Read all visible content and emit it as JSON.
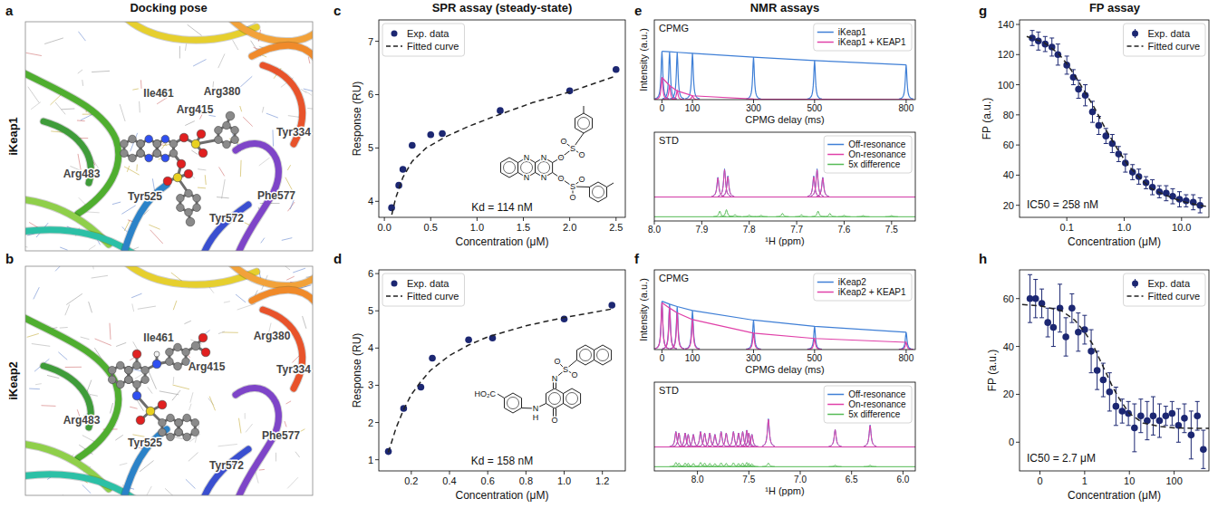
{
  "headers": {
    "docking": "Docking pose",
    "spr": "SPR assay (steady-state)",
    "nmr": "NMR assays",
    "fp": "FP assay"
  },
  "docking": [
    {
      "panel": "a",
      "row": "iKeap1",
      "residues": [
        "Ile461",
        "Arg415",
        "Arg380",
        "Tyr334",
        "Arg483",
        "Tyr525",
        "Tyr572",
        "Phe577"
      ]
    },
    {
      "panel": "b",
      "row": "iKeap2",
      "residues": [
        "Ile461",
        "Arg415",
        "Arg380",
        "Tyr334",
        "Arg483",
        "Tyr525",
        "Tyr572",
        "Phe577"
      ]
    }
  ],
  "chart_data": [
    {
      "type": "scatter",
      "panel": "c",
      "x_label": "Concentration (μM)",
      "y_label": "Response (RU)",
      "xlim": [
        -0.06,
        2.6
      ],
      "xticks": [
        {
          "value": 0,
          "label": "0.0"
        },
        0.5,
        {
          "value": 1,
          "label": "1.0"
        },
        1.5,
        {
          "value": 2,
          "label": "2.0"
        },
        2.5
      ],
      "ylim": [
        3.7,
        7.4
      ],
      "yticks": [
        4,
        5,
        6,
        7
      ],
      "legend": "upper left",
      "annotations": [
        "Kd = 114 nM"
      ],
      "structure_labels": [
        "N",
        "N",
        "N",
        "N",
        "O",
        "S",
        "O",
        "O",
        "O",
        "S",
        "O",
        "O"
      ],
      "series": [
        {
          "name": "Exp. data",
          "type": "scatter",
          "marker": "circle",
          "color": "#1c2772",
          "x": [
            0.078,
            0.156,
            0.2,
            0.3,
            0.5,
            0.625,
            1.25,
            2.0,
            2.5
          ],
          "values": [
            3.88,
            4.3,
            4.6,
            5.05,
            5.25,
            5.27,
            5.7,
            6.07,
            6.47
          ]
        },
        {
          "name": "Fitted curve",
          "type": "line",
          "line_style": "dashed",
          "color": "#222222",
          "x": [
            0.08,
            0.12,
            0.2,
            0.3,
            0.45,
            0.65,
            0.9,
            1.2,
            1.6,
            2.0,
            2.5
          ],
          "values": [
            3.75,
            4.05,
            4.45,
            4.75,
            5.0,
            5.2,
            5.4,
            5.6,
            5.85,
            6.05,
            6.35
          ]
        }
      ]
    },
    {
      "type": "scatter",
      "panel": "d",
      "x_label": "Concentration (μM)",
      "y_label": "Response (RU)",
      "xlim": [
        0.03,
        1.32
      ],
      "xticks": [
        0.2,
        0.4,
        0.6,
        0.8,
        {
          "value": 1,
          "label": "1.0"
        },
        1.2
      ],
      "ylim": [
        0.7,
        6.1
      ],
      "yticks": [
        1,
        2,
        3,
        4,
        5,
        6
      ],
      "legend": "upper left",
      "annotations": [
        "Kd = 158 nM"
      ],
      "structure_labels": [
        "N",
        "S",
        "O",
        "O",
        "O",
        "N",
        "H",
        "HO₂C"
      ],
      "series": [
        {
          "name": "Exp. data",
          "type": "scatter",
          "marker": "circle",
          "color": "#1c2772",
          "x": [
            0.08,
            0.16,
            0.25,
            0.31,
            0.5,
            0.625,
            1.0,
            1.25
          ],
          "values": [
            1.22,
            2.38,
            2.95,
            3.73,
            4.22,
            4.27,
            4.78,
            5.15
          ]
        },
        {
          "name": "Fitted curve",
          "type": "line",
          "line_style": "dashed",
          "color": "#222222",
          "x": [
            0.08,
            0.12,
            0.16,
            0.2,
            0.25,
            0.3,
            0.4,
            0.5,
            0.6,
            0.8,
            1.0,
            1.25
          ],
          "values": [
            1.2,
            1.85,
            2.35,
            2.75,
            3.1,
            3.4,
            3.8,
            4.08,
            4.3,
            4.6,
            4.82,
            5.05
          ]
        }
      ]
    },
    {
      "type": "cpmg",
      "panel": "e",
      "title": "CPMG",
      "x_label": "CPMG delay (ms)",
      "y_label": "Intensity (a.u.)",
      "xlim": [
        -25,
        830
      ],
      "xticks": [
        0,
        100,
        300,
        500,
        800
      ],
      "ylim": [
        0,
        1.65
      ],
      "tick_labels": "x",
      "legend": "upper right",
      "series": [
        {
          "name": "iKeap1",
          "color": "#3f7fd6",
          "x": [
            0,
            25,
            50,
            100,
            300,
            500,
            800
          ],
          "values": [
            1.0,
            0.99,
            0.98,
            0.96,
            0.88,
            0.81,
            0.72
          ]
        },
        {
          "name": "iKeap1 + KEAP1",
          "color": "#e040a8",
          "x": [
            0,
            25,
            50,
            100,
            300,
            500,
            800
          ],
          "values": [
            0.46,
            0.29,
            0.18,
            0.08,
            0.012,
            0.006,
            0.004
          ]
        }
      ]
    },
    {
      "type": "spectrum",
      "title": "STD",
      "x_label": "¹H (ppm)",
      "xlim": [
        8.0,
        7.45
      ],
      "xticks": [
        {
          "value": 8,
          "label": "8.0"
        },
        7.9,
        7.8,
        7.7,
        7.6,
        7.5
      ],
      "ylim": [
        -0.85,
        2.3
      ],
      "tick_labels": "x",
      "legend": "upper right",
      "series": [
        {
          "name": "Off-resonance",
          "color": "#3f7fd6",
          "baseline": 0,
          "x": [
            7.866,
            7.852,
            7.845,
            7.664,
            7.657,
            7.645
          ],
          "values": [
            0.7,
            1.0,
            0.75,
            0.75,
            1.0,
            0.7
          ]
        },
        {
          "name": "On-resonance",
          "color": "#e040a8",
          "baseline": 0,
          "x": [
            7.866,
            7.852,
            7.845,
            7.664,
            7.657,
            7.645
          ],
          "values": [
            0.68,
            0.97,
            0.72,
            0.72,
            0.96,
            0.68
          ]
        },
        {
          "name": "5x difference",
          "color": "#55bb55",
          "baseline": -0.7,
          "x": [
            7.862,
            7.848,
            7.83,
            7.8,
            7.775,
            7.73,
            7.69,
            7.655,
            7.63,
            7.6,
            7.56,
            7.5
          ],
          "values": [
            0.2,
            0.25,
            0.08,
            0.06,
            0.05,
            0.12,
            0.07,
            0.2,
            0.12,
            0.05,
            0.04,
            0.04
          ]
        }
      ]
    },
    {
      "type": "cpmg",
      "panel": "f",
      "title": "CPMG",
      "x_label": "CPMG delay (ms)",
      "y_label": "Intensity (a.u.)",
      "xlim": [
        -25,
        830
      ],
      "xticks": [
        0,
        100,
        300,
        500,
        800
      ],
      "ylim": [
        0,
        1.65
      ],
      "tick_labels": "x",
      "legend": "upper right",
      "series": [
        {
          "name": "iKeap2",
          "color": "#3f7fd6",
          "x": [
            0,
            25,
            50,
            100,
            300,
            500,
            800
          ],
          "values": [
            1.0,
            0.94,
            0.89,
            0.81,
            0.61,
            0.48,
            0.36
          ]
        },
        {
          "name": "iKeap2 + KEAP1",
          "color": "#e040a8",
          "x": [
            0,
            25,
            50,
            100,
            300,
            500,
            800
          ],
          "values": [
            0.97,
            0.86,
            0.76,
            0.62,
            0.34,
            0.23,
            0.15
          ]
        }
      ]
    },
    {
      "type": "spectrum",
      "title": "STD",
      "x_label": "¹H (ppm)",
      "xlim": [
        8.42,
        5.88
      ],
      "xticks": [
        {
          "value": 8,
          "label": "8.0"
        },
        7.5,
        {
          "value": 7,
          "label": "7.0"
        },
        6.5,
        {
          "value": 6,
          "label": "6.0"
        }
      ],
      "ylim": [
        -0.85,
        2.3
      ],
      "tick_labels": "x",
      "legend": "upper right",
      "series": [
        {
          "name": "Off-resonance",
          "color": "#3f7fd6",
          "baseline": 0,
          "x": [
            8.21,
            8.18,
            8.12,
            8.09,
            8.04,
            7.97,
            7.93,
            7.88,
            7.83,
            7.77,
            7.72,
            7.65,
            7.6,
            7.56,
            7.52,
            7.5,
            7.47,
            7.31,
            6.66,
            6.32
          ],
          "values": [
            0.55,
            0.5,
            0.5,
            0.45,
            0.45,
            0.55,
            0.5,
            0.5,
            0.45,
            0.55,
            0.5,
            0.55,
            0.5,
            0.55,
            0.6,
            0.5,
            0.45,
            1.0,
            0.62,
            0.78
          ]
        },
        {
          "name": "On-resonance",
          "color": "#e040a8",
          "baseline": 0,
          "x": [
            8.21,
            8.18,
            8.12,
            8.09,
            8.04,
            7.97,
            7.93,
            7.88,
            7.83,
            7.77,
            7.72,
            7.65,
            7.6,
            7.56,
            7.52,
            7.5,
            7.47,
            7.31,
            6.66,
            6.32
          ],
          "values": [
            0.54,
            0.49,
            0.49,
            0.44,
            0.44,
            0.54,
            0.49,
            0.49,
            0.44,
            0.54,
            0.49,
            0.54,
            0.49,
            0.54,
            0.59,
            0.49,
            0.44,
            0.98,
            0.61,
            0.76
          ]
        },
        {
          "name": "5x difference",
          "color": "#55bb55",
          "baseline": -0.7,
          "x": [
            8.21,
            8.18,
            8.12,
            8.09,
            8.04,
            7.97,
            7.93,
            7.88,
            7.83,
            7.77,
            7.72,
            7.65,
            7.6,
            7.56,
            7.52,
            7.5,
            7.47,
            7.31,
            6.66,
            6.32
          ],
          "values": [
            0.15,
            0.13,
            0.13,
            0.12,
            0.12,
            0.15,
            0.13,
            0.12,
            0.11,
            0.14,
            0.12,
            0.14,
            0.12,
            0.13,
            0.15,
            0.12,
            0.1,
            0.13,
            0.05,
            0.05
          ]
        }
      ]
    },
    {
      "type": "scatter",
      "panel": "g",
      "log": "x",
      "x_label": "Concentration (μM)",
      "y_label": "FP (a.u.)",
      "xlim": [
        0.015,
        30
      ],
      "xticks": [
        0.1,
        {
          "value": 1,
          "label": "1.0"
        },
        {
          "value": 10,
          "label": "10.0"
        }
      ],
      "ylim": [
        12,
        143
      ],
      "yticks": [
        20,
        40,
        60,
        80,
        100,
        120,
        140
      ],
      "legend": "upper right",
      "annotations": [
        "IC50 = 258 nM"
      ],
      "series": [
        {
          "name": "Exp. data",
          "type": "scatter",
          "marker": "circle",
          "color": "#1c2772",
          "x": [
            0.025,
            0.032,
            0.042,
            0.055,
            0.07,
            0.1,
            0.13,
            0.16,
            0.21,
            0.28,
            0.36,
            0.48,
            0.62,
            0.8,
            1.05,
            1.4,
            1.8,
            2.4,
            3.1,
            4.1,
            5.4,
            7,
            9.2,
            12,
            16,
            21
          ],
          "values": [
            131,
            129,
            127,
            125,
            120,
            113,
            105,
            97,
            93,
            82,
            73,
            66,
            61,
            54,
            48,
            42,
            39,
            35,
            32,
            29,
            28,
            26,
            24,
            23,
            22,
            20
          ],
          "errors": [
            5,
            6,
            5,
            6,
            7,
            6,
            5,
            6,
            7,
            7,
            6,
            5,
            6,
            5,
            6,
            5,
            5,
            4,
            5,
            4,
            5,
            5,
            5,
            4,
            5,
            5
          ]
        },
        {
          "name": "Fitted curve",
          "type": "line",
          "line_style": "dashed",
          "color": "#222222",
          "x": [
            0.02,
            0.04,
            0.07,
            0.1,
            0.15,
            0.2,
            0.3,
            0.5,
            0.8,
            1.2,
            2,
            3,
            5,
            8,
            12,
            20,
            30
          ],
          "values": [
            132,
            128,
            121,
            114,
            104,
            96,
            85,
            69,
            56,
            46,
            37,
            31,
            27,
            24,
            22,
            20,
            19
          ]
        }
      ]
    },
    {
      "type": "scatter",
      "panel": "h",
      "log": "x",
      "x_label": "Concentration (μM)",
      "y_label": "FP (a.u.)",
      "xlim": [
        0.035,
        600
      ],
      "xticks": [
        {
          "value": 0.1,
          "label": "0"
        },
        1,
        10,
        100
      ],
      "ylim": [
        -12,
        72
      ],
      "yticks": [
        0,
        20,
        40,
        60
      ],
      "legend": "upper right",
      "annotations": [
        "IC50 = 2.7 μM"
      ],
      "series": [
        {
          "name": "Exp. data",
          "type": "scatter",
          "marker": "circle",
          "color": "#1c2772",
          "x": [
            0.06,
            0.08,
            0.11,
            0.15,
            0.2,
            0.28,
            0.38,
            0.52,
            0.72,
            1.0,
            1.4,
            1.9,
            2.6,
            3.6,
            5,
            6.9,
            9.5,
            13,
            18,
            25,
            34,
            47,
            65,
            90,
            125,
            170,
            240,
            330,
            450
          ],
          "values": [
            60,
            60,
            58,
            50,
            48,
            56,
            44,
            56,
            46,
            47,
            38,
            30,
            26,
            21,
            15,
            13,
            12,
            6,
            11,
            9,
            11,
            9,
            11,
            12,
            7,
            10,
            3,
            11,
            -3
          ],
          "errors": [
            10,
            8,
            6,
            6,
            8,
            10,
            8,
            6,
            8,
            6,
            9,
            8,
            7,
            8,
            8,
            5,
            5,
            10,
            7,
            8,
            8,
            7,
            4,
            5,
            7,
            6,
            10,
            6,
            8
          ]
        },
        {
          "name": "Fitted curve",
          "type": "line",
          "line_style": "dashed",
          "color": "#222222",
          "x": [
            0.04,
            0.1,
            0.3,
            0.6,
            1,
            1.5,
            2,
            3,
            4,
            6,
            10,
            20,
            50,
            100,
            300,
            600
          ],
          "values": [
            57.5,
            57,
            55,
            51,
            46,
            41,
            36,
            29,
            24,
            18,
            12,
            8,
            6.5,
            6,
            5.8,
            5.8
          ]
        }
      ]
    }
  ]
}
